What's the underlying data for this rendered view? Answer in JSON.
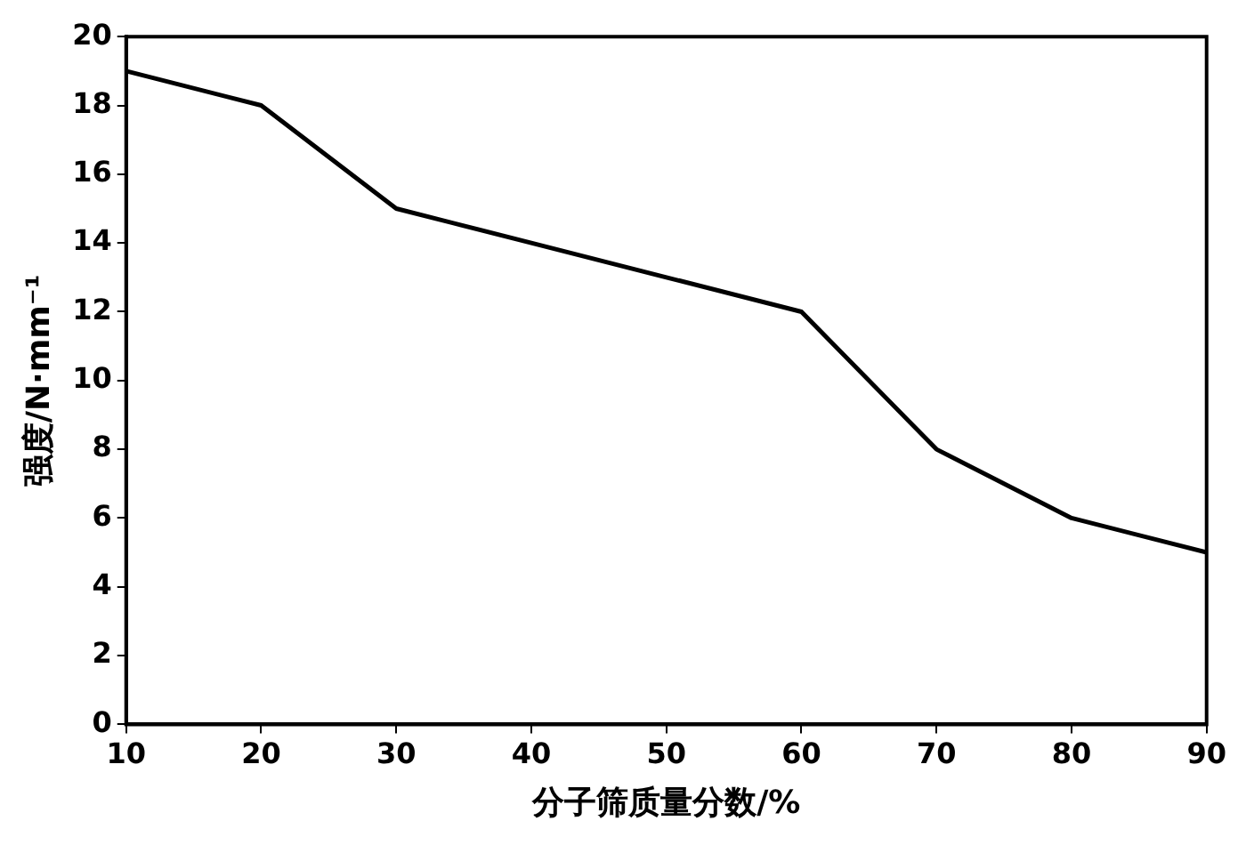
{
  "chart_data": {
    "type": "line",
    "xlabel": "分子筛质量分数/%",
    "ylabel": "强度/N·mm⁻¹",
    "x": [
      10,
      20,
      30,
      40,
      50,
      60,
      70,
      80,
      90
    ],
    "series": [
      {
        "color": "#000000",
        "values": [
          19,
          18,
          15,
          14,
          13,
          12,
          8,
          6,
          5
        ]
      }
    ],
    "xlim": [
      10,
      90
    ],
    "xticks": [
      10,
      20,
      30,
      40,
      50,
      60,
      70,
      80,
      90
    ],
    "ylim": [
      0,
      20
    ],
    "yticks": [
      0,
      2,
      4,
      6,
      8,
      10,
      12,
      14,
      16,
      18,
      20
    ],
    "grid": false,
    "legend": false,
    "marker": "none",
    "line_style": "solid"
  }
}
